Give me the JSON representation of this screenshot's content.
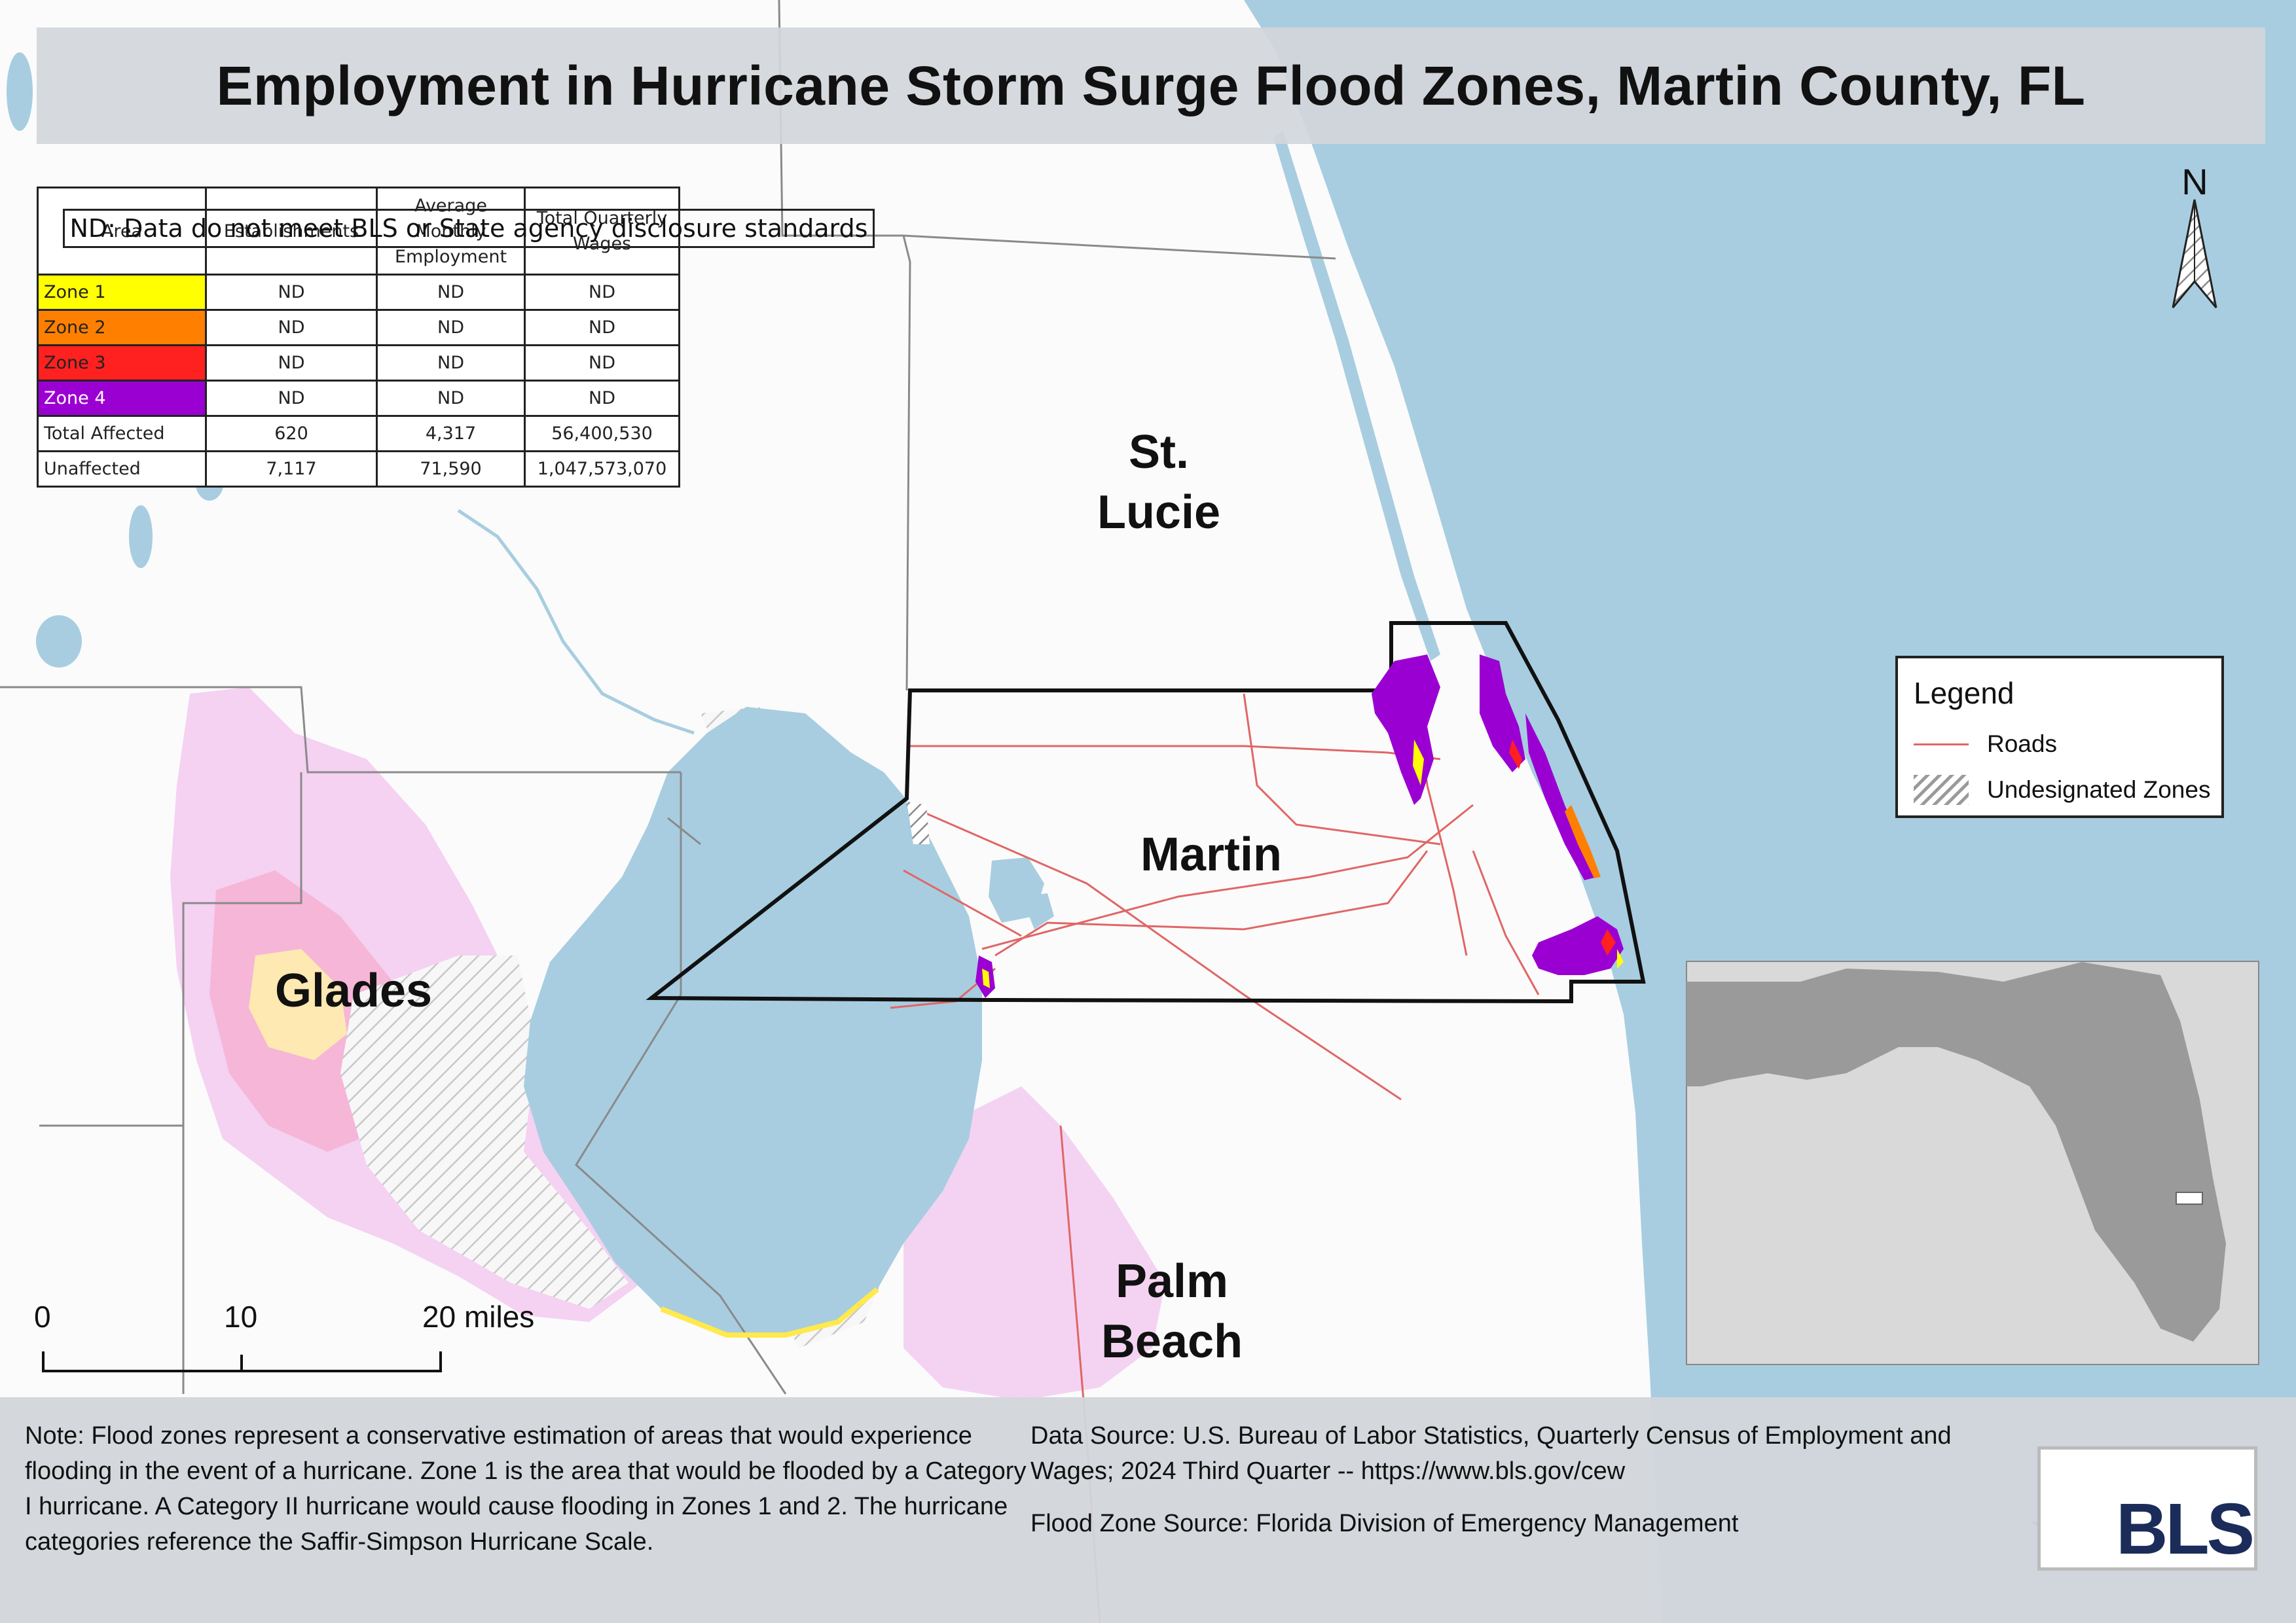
{
  "title": "Employment in Hurricane Storm Surge Flood Zones, Martin County, FL",
  "table": {
    "headers": [
      "Area",
      "Establishments",
      "Average Monthly Employment",
      "Total Quarterly Wages"
    ],
    "rows": [
      {
        "area": "Zone 1",
        "establishments": "ND",
        "employment": "ND",
        "wages": "ND",
        "color": "#ffff00"
      },
      {
        "area": "Zone 2",
        "establishments": "ND",
        "employment": "ND",
        "wages": "ND",
        "color": "#ff8000"
      },
      {
        "area": "Zone 3",
        "establishments": "ND",
        "employment": "ND",
        "wages": "ND",
        "color": "#ff2020"
      },
      {
        "area": "Zone 4",
        "establishments": "ND",
        "employment": "ND",
        "wages": "ND",
        "color": "#9b00d3"
      },
      {
        "area": "Total Affected",
        "establishments": "620",
        "employment": "4,317",
        "wages": "56,400,530"
      },
      {
        "area": "Unaffected",
        "establishments": "7,117",
        "employment": "71,590",
        "wages": "1,047,573,070"
      }
    ],
    "footnote": "ND: Data do not meet BLS or State agency disclosure standards"
  },
  "counties": {
    "st_lucie_line1": "St.",
    "st_lucie_line2": "Lucie",
    "martin": "Martin",
    "glades": "Glades",
    "palm_beach_line1": "Palm",
    "palm_beach_line2": "Beach"
  },
  "north_label": "N",
  "legend": {
    "title": "Legend",
    "roads": "Roads",
    "undesignated": "Undesignated Zones"
  },
  "scale_bar": {
    "label0": "0",
    "label1": "10",
    "label2": "20 miles"
  },
  "footer": {
    "note": "Note: Flood zones represent a conservative estimation of areas that would experience flooding in the event of a hurricane. Zone 1 is the area that would be flooded by a Category I hurricane. A Category II hurricane would cause flooding in Zones 1 and 2. The hurricane categories reference the Saffir-Simpson Hurricane Scale.",
    "data_source": "Data Source: U.S. Bureau of Labor Statistics, Quarterly Census of Employment and Wages; 2024 Third Quarter -- https://www.bls.gov/cew",
    "flood_source": "Flood Zone Source: Florida Division of Emergency Management"
  },
  "logo_text": "BLS",
  "colors": {
    "water": "#a8cde0",
    "zone1": "#ffff00",
    "zone2": "#ff8000",
    "zone3": "#ff2020",
    "zone4": "#9b00d3",
    "road": "#e06666",
    "glades_flood": "#f3c9f0"
  }
}
